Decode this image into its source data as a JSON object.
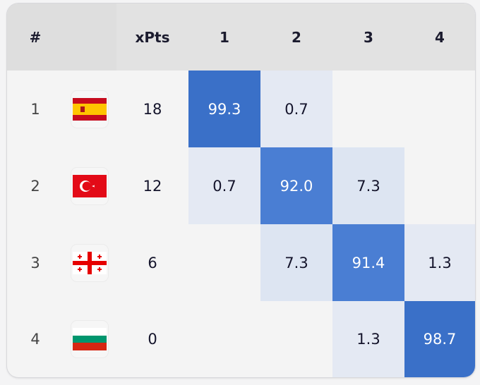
{
  "chart_data": {
    "type": "heatmap",
    "columns": [
      "#",
      "",
      "xPts",
      "1",
      "2",
      "3",
      "4"
    ],
    "rows": [
      {
        "rank": "1",
        "flag": "spain-flag",
        "xpts": "18",
        "probs": [
          "99.3",
          "0.7",
          "",
          ""
        ]
      },
      {
        "rank": "2",
        "flag": "turkey-flag",
        "xpts": "12",
        "probs": [
          "0.7",
          "92.0",
          "7.3",
          ""
        ]
      },
      {
        "rank": "3",
        "flag": "georgia-flag",
        "xpts": "6",
        "probs": [
          "",
          "7.3",
          "91.4",
          "1.3"
        ]
      },
      {
        "rank": "4",
        "flag": "bulgaria-flag",
        "xpts": "0",
        "probs": [
          "",
          "",
          "1.3",
          "98.7"
        ]
      }
    ],
    "colors": {
      "high": "#3a70c8",
      "low": "#e4e9f3"
    }
  }
}
